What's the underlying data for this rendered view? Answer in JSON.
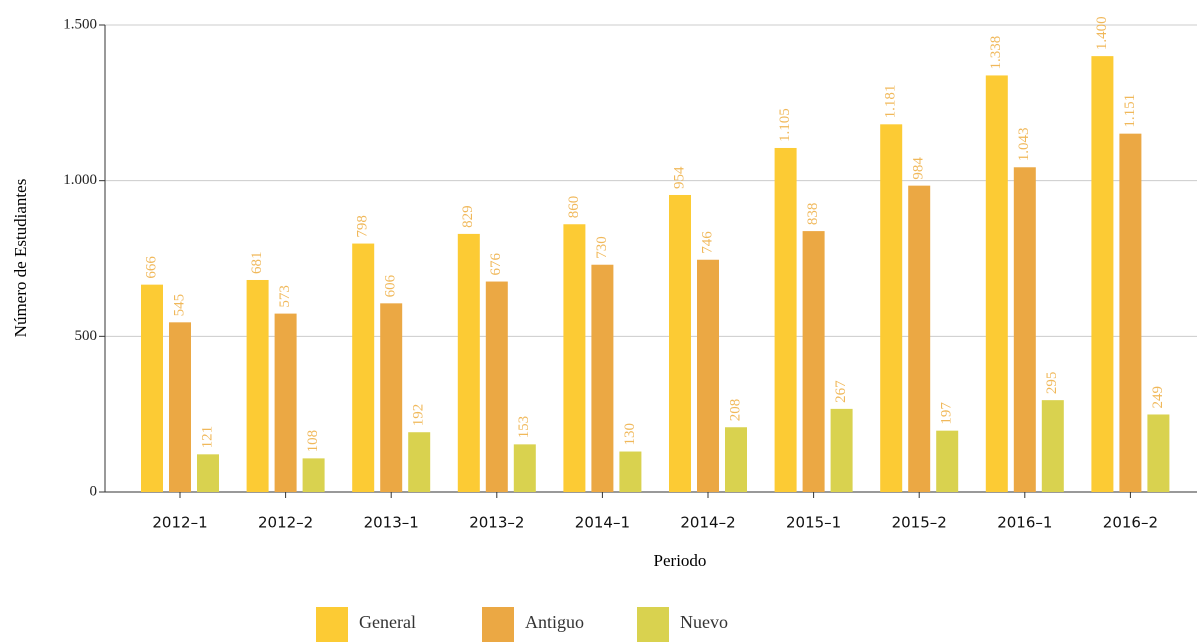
{
  "chart_data": {
    "type": "bar",
    "x_label": "Periodo",
    "y_label": "Número de Estudiantes",
    "categories": [
      "2012–1",
      "2012–2",
      "2013–1",
      "2013–2",
      "2014–1",
      "2014–2",
      "2015–1",
      "2015–2",
      "2016–1",
      "2016–2"
    ],
    "series": [
      {
        "name": "General",
        "color": "#fccb34",
        "values": [
          666,
          681,
          798,
          829,
          860,
          954,
          1105,
          1181,
          1338,
          1400
        ],
        "value_labels": [
          "666",
          "681",
          "798",
          "829",
          "860",
          "954",
          "1.105",
          "1.181",
          "1.338",
          "1.400"
        ]
      },
      {
        "name": "Antiguo",
        "color": "#eba844",
        "values": [
          545,
          573,
          606,
          676,
          730,
          746,
          838,
          984,
          1043,
          1151
        ],
        "value_labels": [
          "545",
          "573",
          "606",
          "676",
          "730",
          "746",
          "838",
          "984",
          "1.043",
          "1.151"
        ]
      },
      {
        "name": "Nuevo",
        "color": "#d9d24f",
        "values": [
          121,
          108,
          192,
          153,
          130,
          208,
          267,
          197,
          295,
          249
        ],
        "value_labels": [
          "121",
          "108",
          "192",
          "153",
          "130",
          "208",
          "267",
          "197",
          "295",
          "249"
        ]
      }
    ],
    "ylim": [
      0,
      1500
    ],
    "yticks": [
      0,
      500,
      {
        "value": 1000,
        "label": "1.000"
      },
      {
        "value": 1500,
        "label": "1.500"
      }
    ],
    "grid": true,
    "legend": "bottom"
  }
}
